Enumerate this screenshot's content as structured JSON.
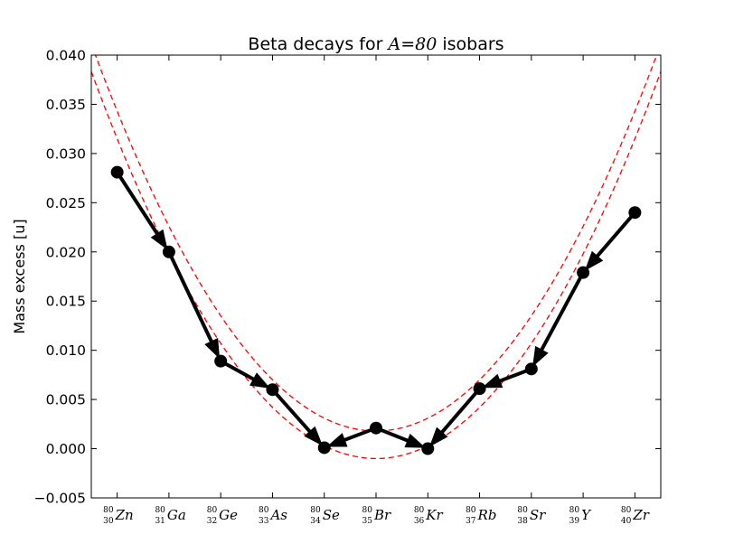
{
  "chart_data": {
    "type": "line",
    "title_prefix": "Beta decays for ",
    "title_math": "A=80",
    "title_suffix": " isobars",
    "xlabel": "",
    "ylabel": "Mass excess [u]",
    "ylim": [
      -0.005,
      0.04
    ],
    "xlim": [
      -0.5,
      10.5
    ],
    "y_ticks": [
      "0.040",
      "0.035",
      "0.030",
      "0.025",
      "0.020",
      "0.015",
      "0.010",
      "0.005",
      "0.000",
      "−0.005"
    ],
    "y_tick_values": [
      0.04,
      0.035,
      0.03,
      0.025,
      0.02,
      0.015,
      0.01,
      0.005,
      0.0,
      -0.005
    ],
    "categories": [
      {
        "A": "80",
        "Z": "30",
        "symbol": "Zn"
      },
      {
        "A": "80",
        "Z": "31",
        "symbol": "Ga"
      },
      {
        "A": "80",
        "Z": "32",
        "symbol": "Ge"
      },
      {
        "A": "80",
        "Z": "33",
        "symbol": "As"
      },
      {
        "A": "80",
        "Z": "34",
        "symbol": "Se"
      },
      {
        "A": "80",
        "Z": "35",
        "symbol": "Br"
      },
      {
        "A": "80",
        "Z": "36",
        "symbol": "Kr"
      },
      {
        "A": "80",
        "Z": "37",
        "symbol": "Rb"
      },
      {
        "A": "80",
        "Z": "38",
        "symbol": "Sr"
      },
      {
        "A": "80",
        "Z": "39",
        "symbol": "Y"
      },
      {
        "A": "80",
        "Z": "40",
        "symbol": "Zr"
      }
    ],
    "values": [
      0.0281,
      0.02,
      0.0089,
      0.006,
      0.0001,
      0.0021,
      0.0,
      0.0061,
      0.0081,
      0.0179,
      0.024
    ],
    "decay_arrows": [
      [
        0,
        1
      ],
      [
        1,
        2
      ],
      [
        2,
        3
      ],
      [
        3,
        4
      ],
      [
        5,
        4
      ],
      [
        5,
        6
      ],
      [
        7,
        6
      ],
      [
        8,
        7
      ],
      [
        9,
        8
      ],
      [
        10,
        9
      ]
    ],
    "fit_curves": [
      {
        "style": "dashed",
        "color": "#ff0000",
        "vertex_x": 5.0,
        "vertex_y": 0.0018,
        "curvature": 0.0013
      },
      {
        "style": "dashed",
        "color": "#ff0000",
        "vertex_x": 5.0,
        "vertex_y": -0.001,
        "curvature": 0.0013
      }
    ],
    "grid": false,
    "colors": {
      "line": "#000000",
      "marker": "#000000",
      "fit": "#ff0000"
    }
  }
}
